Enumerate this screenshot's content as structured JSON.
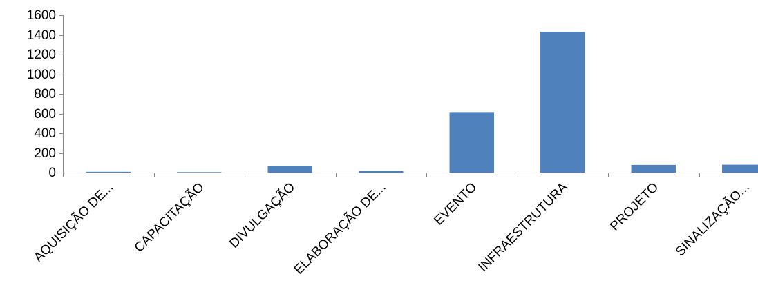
{
  "chart_data": {
    "type": "bar",
    "title": "",
    "xlabel": "",
    "ylabel": "",
    "categories": [
      "AQUISIÇÃO DE...",
      "CAPACITAÇÃO",
      "DIVULGAÇÃO",
      "ELABORAÇÃO DE...",
      "EVENTO",
      "INFRAESTRUTURA",
      "PROJETO",
      "SINALIZAÇÃO..."
    ],
    "values": [
      8,
      5,
      70,
      15,
      615,
      1430,
      78,
      80
    ],
    "ylim": [
      0,
      1600
    ],
    "yticks": [
      "0",
      "200",
      "400",
      "600",
      "800",
      "1000",
      "1200",
      "1400",
      "1600"
    ],
    "grid": false,
    "legend": "none",
    "bar_color": "#4F81BD",
    "axis_color": "#868686"
  }
}
